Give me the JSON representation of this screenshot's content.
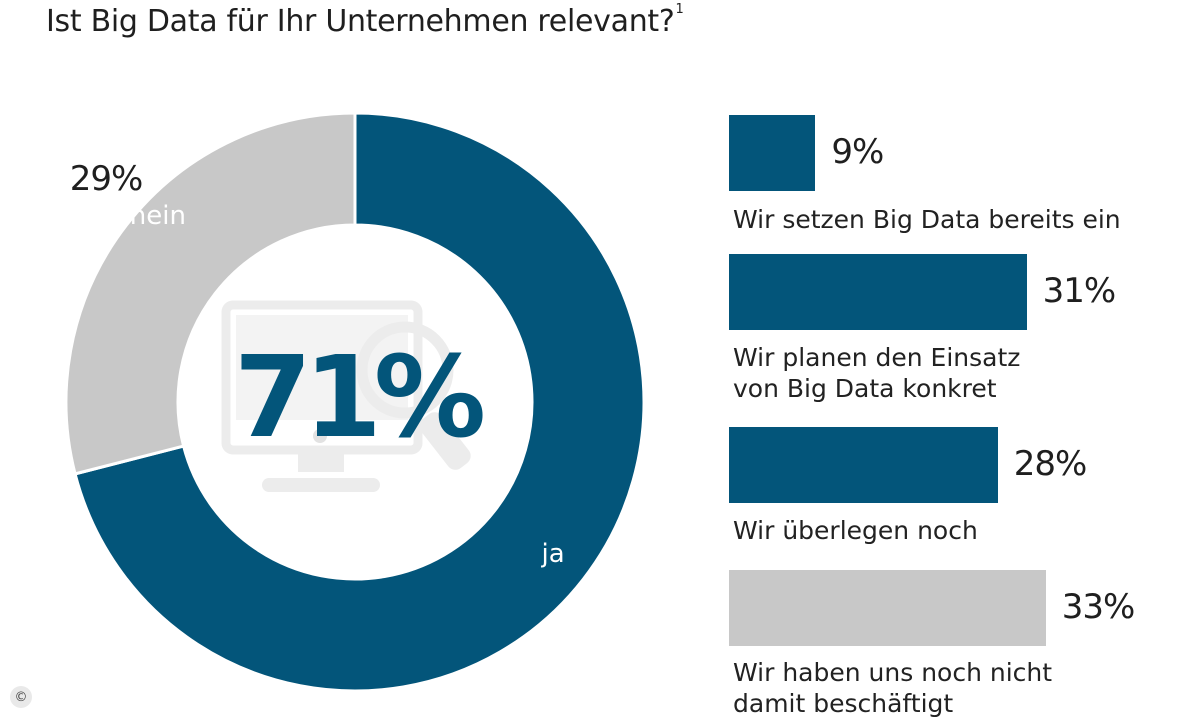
{
  "title": "Ist Big Data für Ihr Unternehmen relevant?",
  "title_footnote": "1",
  "chart_data": [
    {
      "type": "pie",
      "variant": "donut",
      "center_label": "71%",
      "slices": [
        {
          "label": "ja",
          "value": 71,
          "value_label": "71%",
          "color": "#03557a"
        },
        {
          "label": "nein",
          "value": 29,
          "value_label": "29%",
          "color": "#c8c8c8"
        }
      ],
      "background_icon": "computer-magnifier-icon"
    },
    {
      "type": "bar",
      "orientation": "horizontal",
      "items": [
        {
          "label_lines": [
            "Wir setzen Big Data bereits ein"
          ],
          "value": 9,
          "value_label": "9%",
          "color": "#03557a"
        },
        {
          "label_lines": [
            "Wir planen den Einsatz",
            "von Big Data konkret"
          ],
          "value": 31,
          "value_label": "31%",
          "color": "#03557a"
        },
        {
          "label_lines": [
            "Wir überlegen noch"
          ],
          "value": 28,
          "value_label": "28%",
          "color": "#03557a"
        },
        {
          "label_lines": [
            "Wir haben uns noch nicht",
            "damit beschäftigt"
          ],
          "value": 33,
          "value_label": "33%",
          "color": "#c8c8c8"
        }
      ]
    }
  ],
  "copyright_symbol": "©"
}
